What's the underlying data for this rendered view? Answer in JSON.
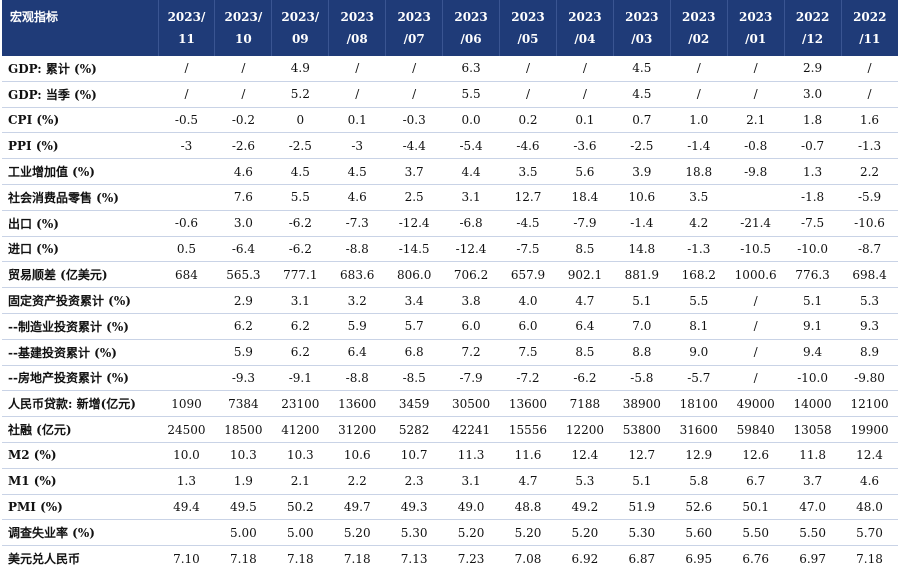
{
  "header": {
    "label": "宏观指标",
    "columns": [
      [
        "2023/",
        "11"
      ],
      [
        "2023/",
        "10"
      ],
      [
        "2023/",
        "09"
      ],
      [
        "2023",
        "/08"
      ],
      [
        "2023",
        "/07"
      ],
      [
        "2023",
        "/06"
      ],
      [
        "2023",
        "/05"
      ],
      [
        "2023",
        "/04"
      ],
      [
        "2023",
        "/03"
      ],
      [
        "2023",
        "/02"
      ],
      [
        "2023",
        "/01"
      ],
      [
        "2022",
        "/12"
      ],
      [
        "2022",
        "/11"
      ]
    ]
  },
  "rows": [
    {
      "label": "GDP: 累计 (%)",
      "values": [
        "/",
        "/",
        "4.9",
        "/",
        "/",
        "6.3",
        "/",
        "/",
        "4.5",
        "/",
        "/",
        "2.9",
        "/"
      ]
    },
    {
      "label": "GDP: 当季 (%)",
      "values": [
        "/",
        "/",
        "5.2",
        "/",
        "/",
        "5.5",
        "/",
        "/",
        "4.5",
        "/",
        "/",
        "3.0",
        "/"
      ]
    },
    {
      "label": "CPI (%)",
      "values": [
        "-0.5",
        "-0.2",
        "0",
        "0.1",
        "-0.3",
        "0.0",
        "0.2",
        "0.1",
        "0.7",
        "1.0",
        "2.1",
        "1.8",
        "1.6"
      ]
    },
    {
      "label": "PPI (%)",
      "values": [
        "-3",
        "-2.6",
        "-2.5",
        "-3",
        "-4.4",
        "-5.4",
        "-4.6",
        "-3.6",
        "-2.5",
        "-1.4",
        "-0.8",
        "-0.7",
        "-1.3"
      ]
    },
    {
      "label": "工业增加值 (%)",
      "values": [
        "",
        "4.6",
        "4.5",
        "4.5",
        "3.7",
        "4.4",
        "3.5",
        "5.6",
        "3.9",
        "18.8",
        "-9.8",
        "1.3",
        "2.2"
      ]
    },
    {
      "label": "社会消费品零售 (%)",
      "values": [
        "",
        "7.6",
        "5.5",
        "4.6",
        "2.5",
        "3.1",
        "12.7",
        "18.4",
        "10.6",
        "3.5",
        "",
        "-1.8",
        "-5.9"
      ]
    },
    {
      "label": "出口 (%)",
      "values": [
        "-0.6",
        "3.0",
        "-6.2",
        "-7.3",
        "-12.4",
        "-6.8",
        "-4.5",
        "-7.9",
        "-1.4",
        "4.2",
        "-21.4",
        "-7.5",
        "-10.6"
      ]
    },
    {
      "label": "进口 (%)",
      "values": [
        "0.5",
        "-6.4",
        "-6.2",
        "-8.8",
        "-14.5",
        "-12.4",
        "-7.5",
        "8.5",
        "14.8",
        "-1.3",
        "-10.5",
        "-10.0",
        "-8.7"
      ]
    },
    {
      "label": "贸易顺差 (亿美元)",
      "values": [
        "684",
        "565.3",
        "777.1",
        "683.6",
        "806.0",
        "706.2",
        "657.9",
        "902.1",
        "881.9",
        "168.2",
        "1000.6",
        "776.3",
        "698.4"
      ]
    },
    {
      "label": "固定资产投资累计 (%)",
      "values": [
        "",
        "2.9",
        "3.1",
        "3.2",
        "3.4",
        "3.8",
        "4.0",
        "4.7",
        "5.1",
        "5.5",
        "/",
        "5.1",
        "5.3"
      ]
    },
    {
      "label": "--制造业投资累计 (%)",
      "values": [
        "",
        "6.2",
        "6.2",
        "5.9",
        "5.7",
        "6.0",
        "6.0",
        "6.4",
        "7.0",
        "8.1",
        "/",
        "9.1",
        "9.3"
      ]
    },
    {
      "label": "--基建投资累计 (%)",
      "values": [
        "",
        "5.9",
        "6.2",
        "6.4",
        "6.8",
        "7.2",
        "7.5",
        "8.5",
        "8.8",
        "9.0",
        "/",
        "9.4",
        "8.9"
      ]
    },
    {
      "label": "--房地产投资累计 (%)",
      "values": [
        "",
        "-9.3",
        "-9.1",
        "-8.8",
        "-8.5",
        "-7.9",
        "-7.2",
        "-6.2",
        "-5.8",
        "-5.7",
        "/",
        "-10.0",
        "-9.80"
      ]
    },
    {
      "label": "人民币贷款: 新增(亿元)",
      "values": [
        "1090",
        "7384",
        "23100",
        "13600",
        "3459",
        "30500",
        "13600",
        "7188",
        "38900",
        "18100",
        "49000",
        "14000",
        "12100"
      ]
    },
    {
      "label": "社融 (亿元)",
      "values": [
        "24500",
        "18500",
        "41200",
        "31200",
        "5282",
        "42241",
        "15556",
        "12200",
        "53800",
        "31600",
        "59840",
        "13058",
        "19900"
      ]
    },
    {
      "label": "M2 (%)",
      "values": [
        "10.0",
        "10.3",
        "10.3",
        "10.6",
        "10.7",
        "11.3",
        "11.6",
        "12.4",
        "12.7",
        "12.9",
        "12.6",
        "11.8",
        "12.4"
      ]
    },
    {
      "label": "M1 (%)",
      "values": [
        "1.3",
        "1.9",
        "2.1",
        "2.2",
        "2.3",
        "3.1",
        "4.7",
        "5.3",
        "5.1",
        "5.8",
        "6.7",
        "3.7",
        "4.6"
      ]
    },
    {
      "label": "PMI (%)",
      "values": [
        "49.4",
        "49.5",
        "50.2",
        "49.7",
        "49.3",
        "49.0",
        "48.8",
        "49.2",
        "51.9",
        "52.6",
        "50.1",
        "47.0",
        "48.0"
      ]
    },
    {
      "label": "调查失业率 (%)",
      "values": [
        "",
        "5.00",
        "5.00",
        "5.20",
        "5.30",
        "5.20",
        "5.20",
        "5.20",
        "5.30",
        "5.60",
        "5.50",
        "5.50",
        "5.70"
      ]
    },
    {
      "label": "美元兑人民币",
      "values": [
        "7.10",
        "7.18",
        "7.18",
        "7.18",
        "7.13",
        "7.23",
        "7.08",
        "6.92",
        "6.87",
        "6.95",
        "6.76",
        "6.97",
        "7.18"
      ]
    }
  ]
}
